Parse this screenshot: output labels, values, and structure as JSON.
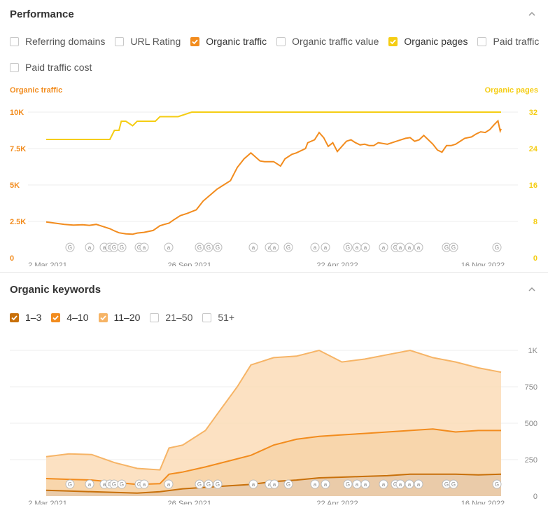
{
  "performance": {
    "title": "Performance",
    "checkboxes": [
      {
        "label": "Referring domains",
        "checked": false,
        "color": ""
      },
      {
        "label": "URL Rating",
        "checked": false,
        "color": ""
      },
      {
        "label": "Organic traffic",
        "checked": true,
        "color": "#f28c1e"
      },
      {
        "label": "Organic traffic value",
        "checked": false,
        "color": ""
      },
      {
        "label": "Organic pages",
        "checked": true,
        "color": "#f5cd14"
      },
      {
        "label": "Paid traffic",
        "checked": false,
        "color": ""
      },
      {
        "label": "Paid traffic cost",
        "checked": false,
        "color": ""
      }
    ]
  },
  "keywords": {
    "title": "Organic keywords",
    "checkboxes": [
      {
        "label": "1–3",
        "checked": true,
        "color": "#c8700a"
      },
      {
        "label": "4–10",
        "checked": true,
        "color": "#f28c1e"
      },
      {
        "label": "11–20",
        "checked": true,
        "color": "#f6b466"
      },
      {
        "label": "21–50",
        "checked": false,
        "color": ""
      },
      {
        "label": "51+",
        "checked": false,
        "color": ""
      }
    ]
  },
  "chart_data": [
    {
      "type": "line",
      "title": "",
      "ylabel_left": "Organic traffic",
      "ylabel_right": "Organic pages",
      "x_tick_labels": [
        "2 Mar 2021",
        "26 Sep 2021",
        "22 Apr 2022",
        "16 Nov 2022"
      ],
      "y_left_ticks": [
        "0",
        "2.5K",
        "5K",
        "7.5K",
        "10K"
      ],
      "y_left_range": [
        0,
        10000
      ],
      "y_right_ticks": [
        "0",
        "8",
        "16",
        "24",
        "32"
      ],
      "y_right_range": [
        0,
        32
      ],
      "colors": {
        "organic_traffic": "#f28c1e",
        "organic_pages": "#f5cd14",
        "axis_left": "#f28c1e",
        "axis_right": "#f5cd14"
      },
      "x_range": [
        0,
        1000
      ],
      "series": [
        {
          "name": "Organic traffic",
          "axis": "left",
          "x": [
            0,
            20,
            40,
            60,
            80,
            95,
            110,
            125,
            140,
            150,
            160,
            175,
            190,
            200,
            215,
            235,
            250,
            260,
            270,
            280,
            295,
            310,
            330,
            345,
            360,
            375,
            390,
            405,
            420,
            435,
            450,
            470,
            480,
            500,
            505,
            515,
            525,
            540,
            550,
            570,
            575,
            590,
            600,
            610,
            620,
            630,
            640,
            660,
            670,
            680,
            690,
            700,
            710,
            720,
            730,
            750,
            770,
            790,
            800,
            810,
            820,
            830,
            840,
            850,
            860,
            870,
            880,
            890,
            900,
            910,
            920,
            935,
            945,
            955,
            965,
            975,
            985,
            993,
            998,
            1000
          ],
          "y": [
            2460,
            2380,
            2300,
            2250,
            2270,
            2230,
            2300,
            2150,
            2000,
            1850,
            1720,
            1650,
            1620,
            1700,
            1750,
            1880,
            2200,
            2300,
            2380,
            2600,
            2900,
            3050,
            3300,
            3900,
            4300,
            4700,
            5000,
            5300,
            6200,
            6800,
            7200,
            6650,
            6600,
            6600,
            6500,
            6300,
            6800,
            7100,
            7200,
            7500,
            7900,
            8100,
            8600,
            8250,
            7650,
            7900,
            7300,
            8000,
            8100,
            7900,
            7750,
            7800,
            7700,
            7700,
            7900,
            7800,
            8000,
            8200,
            8250,
            8000,
            8100,
            8400,
            8100,
            7800,
            7400,
            7250,
            7700,
            7700,
            7800,
            8000,
            8200,
            8300,
            8500,
            8650,
            8600,
            8800,
            9150,
            9400,
            8700,
            8850
          ]
        },
        {
          "name": "Organic pages",
          "axis": "right",
          "x": [
            0,
            90,
            140,
            140,
            150,
            160,
            165,
            175,
            190,
            200,
            240,
            250,
            270,
            290,
            320,
            340,
            345,
            1000
          ],
          "y": [
            26,
            26,
            26,
            26,
            28,
            28,
            30,
            30,
            29,
            30,
            30,
            31,
            31,
            31,
            32,
            32,
            32,
            32
          ]
        }
      ]
    },
    {
      "type": "area",
      "title": "",
      "x_tick_labels": [
        "2 Mar 2021",
        "26 Sep 2021",
        "22 Apr 2022",
        "16 Nov 2022"
      ],
      "y_ticks": [
        "0",
        "250",
        "500",
        "750",
        "1K"
      ],
      "y_range": [
        0,
        1000
      ],
      "x_range": [
        0,
        1000
      ],
      "series": [
        {
          "name": "1–3",
          "color": "#c8700a",
          "x": [
            0,
            50,
            100,
            150,
            200,
            250,
            300,
            350,
            400,
            450,
            500,
            550,
            600,
            650,
            700,
            750,
            800,
            850,
            900,
            950,
            1000
          ],
          "y": [
            40,
            35,
            30,
            25,
            20,
            30,
            50,
            60,
            70,
            80,
            100,
            110,
            125,
            130,
            135,
            140,
            150,
            150,
            150,
            145,
            150
          ]
        },
        {
          "name": "4–10",
          "color": "#f28c1e",
          "x": [
            0,
            50,
            100,
            150,
            200,
            250,
            270,
            300,
            350,
            400,
            450,
            500,
            550,
            600,
            650,
            700,
            750,
            800,
            850,
            900,
            950,
            1000
          ],
          "y": [
            120,
            115,
            110,
            95,
            80,
            85,
            150,
            165,
            200,
            240,
            280,
            350,
            390,
            410,
            420,
            430,
            440,
            450,
            460,
            440,
            450,
            450
          ]
        },
        {
          "name": "11–20",
          "color": "#f6b466",
          "x": [
            0,
            50,
            100,
            150,
            200,
            250,
            270,
            300,
            350,
            380,
            420,
            450,
            500,
            550,
            600,
            650,
            700,
            750,
            800,
            850,
            900,
            950,
            1000
          ],
          "y": [
            270,
            290,
            285,
            230,
            190,
            180,
            330,
            350,
            450,
            580,
            750,
            900,
            950,
            960,
            1000,
            920,
            940,
            970,
            1000,
            950,
            920,
            880,
            850
          ]
        }
      ]
    }
  ],
  "google_markers": [
    "G",
    "a",
    "a",
    "G",
    "G",
    "G",
    "G",
    "a",
    "a",
    "G",
    "G",
    "G",
    "a",
    "a",
    "a",
    "G",
    "a",
    "a",
    "G",
    "a",
    "a",
    "a",
    "G",
    "a",
    "a",
    "a",
    "G",
    "G",
    "G",
    "G",
    "G",
    "G"
  ]
}
